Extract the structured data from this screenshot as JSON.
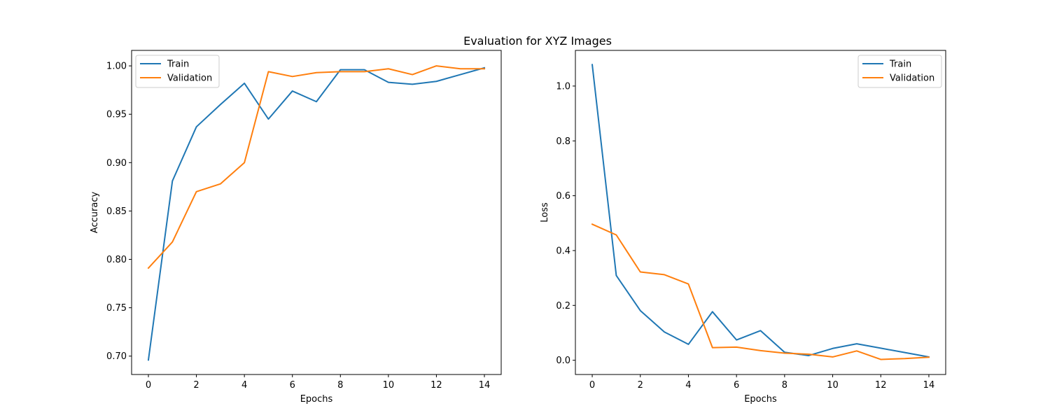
{
  "suptitle": "Evaluation for XYZ Images",
  "colors": {
    "train": "#1f77b4",
    "validation": "#ff7f0e"
  },
  "chart_data": [
    {
      "type": "line",
      "title": "",
      "xlabel": "Epochs",
      "ylabel": "Accuracy",
      "xlim": [
        -0.7,
        14.7
      ],
      "ylim": [
        0.681,
        1.016
      ],
      "xticks": [
        0,
        2,
        4,
        6,
        8,
        10,
        12,
        14
      ],
      "xtick_labels": [
        "0",
        "2",
        "4",
        "6",
        "8",
        "10",
        "12",
        "14"
      ],
      "yticks": [
        0.7,
        0.75,
        0.8,
        0.85,
        0.9,
        0.95,
        1.0
      ],
      "ytick_labels": [
        "0.70",
        "0.75",
        "0.80",
        "0.85",
        "0.90",
        "0.95",
        "1.00"
      ],
      "legend": "top-left",
      "x": [
        0,
        1,
        2,
        3,
        4,
        5,
        6,
        7,
        8,
        9,
        10,
        11,
        12,
        13,
        14
      ],
      "series": [
        {
          "name": "Train",
          "color": "#1f77b4",
          "values": [
            0.696,
            0.881,
            0.937,
            0.96,
            0.982,
            0.945,
            0.974,
            0.963,
            0.996,
            0.996,
            0.983,
            0.981,
            0.984,
            0.991,
            0.998
          ]
        },
        {
          "name": "Validation",
          "color": "#ff7f0e",
          "values": [
            0.791,
            0.818,
            0.87,
            0.878,
            0.9,
            0.994,
            0.989,
            0.993,
            0.994,
            0.994,
            0.997,
            0.991,
            1.0,
            0.997,
            0.997
          ]
        }
      ]
    },
    {
      "type": "line",
      "title": "",
      "xlabel": "Epochs",
      "ylabel": "Loss",
      "xlim": [
        -0.7,
        14.7
      ],
      "ylim": [
        -0.052,
        1.13
      ],
      "xticks": [
        0,
        2,
        4,
        6,
        8,
        10,
        12,
        14
      ],
      "xtick_labels": [
        "0",
        "2",
        "4",
        "6",
        "8",
        "10",
        "12",
        "14"
      ],
      "yticks": [
        0.0,
        0.2,
        0.4,
        0.6,
        0.8,
        1.0
      ],
      "ytick_labels": [
        "0.0",
        "0.2",
        "0.4",
        "0.6",
        "0.8",
        "1.0"
      ],
      "legend": "top-right",
      "x": [
        0,
        1,
        2,
        3,
        4,
        5,
        6,
        7,
        8,
        9,
        10,
        11,
        12,
        13,
        14
      ],
      "series": [
        {
          "name": "Train",
          "color": "#1f77b4",
          "values": [
            1.078,
            0.309,
            0.181,
            0.103,
            0.058,
            0.177,
            0.074,
            0.108,
            0.029,
            0.017,
            0.043,
            0.06,
            0.044,
            0.028,
            0.012
          ]
        },
        {
          "name": "Validation",
          "color": "#ff7f0e",
          "values": [
            0.496,
            0.457,
            0.322,
            0.312,
            0.278,
            0.046,
            0.048,
            0.035,
            0.026,
            0.022,
            0.012,
            0.034,
            0.003,
            0.006,
            0.011
          ]
        }
      ]
    }
  ]
}
